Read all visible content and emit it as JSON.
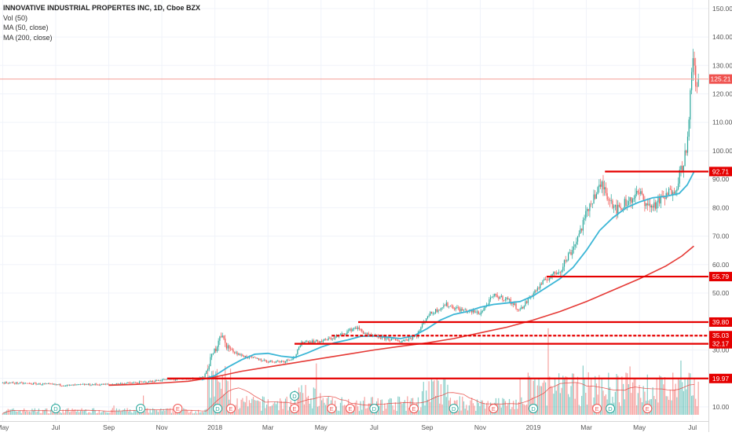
{
  "legend": {
    "title": "INNOVATIVE INDUSTRIAL PROPERTES INC, 1D, Cboe BZX",
    "vol": "Vol (50)",
    "ma50": "MA (50, close)",
    "ma200": "MA (200, close)"
  },
  "colors": {
    "up": "#26a69a",
    "down": "#ef5350",
    "ma50": "#3bb6d6",
    "ma200": "#e53935",
    "hline": "#e50000",
    "last_price_line": "#f4a09a",
    "axis_text": "#555555",
    "grid": "#f0f3fa"
  },
  "chart_data": {
    "type": "candlestick",
    "title": "INNOVATIVE INDUSTRIAL PROPERTES INC, 1D, Cboe BZX",
    "ylim": [
      5,
      153
    ],
    "y_ticks": [
      10,
      20,
      30,
      40,
      50,
      60,
      70,
      80,
      90,
      100,
      110,
      120,
      130,
      140,
      150
    ],
    "y_tick_labels": [
      "10.00",
      "20.00",
      "30.00",
      "40.00",
      "50.00",
      "60.00",
      "70.00",
      "80.00",
      "90.00",
      "100.00",
      "110.00",
      "120.00",
      "130.00",
      "140.00",
      "150.00"
    ],
    "x_ticks": [
      {
        "label": "May",
        "t": 0
      },
      {
        "label": "Jul",
        "t": 2
      },
      {
        "label": "Sep",
        "t": 4
      },
      {
        "label": "Nov",
        "t": 6
      },
      {
        "label": "2018",
        "t": 8
      },
      {
        "label": "Mar",
        "t": 10
      },
      {
        "label": "May",
        "t": 12
      },
      {
        "label": "Jul",
        "t": 14
      },
      {
        "label": "Sep",
        "t": 16
      },
      {
        "label": "Nov",
        "t": 18
      },
      {
        "label": "2019",
        "t": 20
      },
      {
        "label": "Mar",
        "t": 22
      },
      {
        "label": "May",
        "t": 24
      },
      {
        "label": "Jul",
        "t": 26
      }
    ],
    "price_path": [
      [
        0,
        18.5
      ],
      [
        1,
        18.2
      ],
      [
        2,
        17.8
      ],
      [
        2.5,
        17.5
      ],
      [
        3,
        17.8
      ],
      [
        4,
        17.9
      ],
      [
        4.7,
        18.3
      ],
      [
        5.5,
        18.8
      ],
      [
        6,
        19.5
      ],
      [
        7,
        19.8
      ],
      [
        7.6,
        20.5
      ],
      [
        7.85,
        27
      ],
      [
        8.05,
        31
      ],
      [
        8.2,
        36
      ],
      [
        8.4,
        32
      ],
      [
        8.6,
        30
      ],
      [
        9,
        28
      ],
      [
        9.5,
        27
      ],
      [
        10,
        26
      ],
      [
        10.6,
        26
      ],
      [
        11,
        27.5
      ],
      [
        11.3,
        33
      ],
      [
        12,
        33
      ],
      [
        12.7,
        35
      ],
      [
        13.3,
        38
      ],
      [
        13.8,
        35
      ],
      [
        14.5,
        34
      ],
      [
        15,
        33
      ],
      [
        15.6,
        35
      ],
      [
        16,
        42
      ],
      [
        16.7,
        46
      ],
      [
        17.3,
        44
      ],
      [
        18,
        43
      ],
      [
        18.5,
        49
      ],
      [
        19,
        48
      ],
      [
        19.5,
        44
      ],
      [
        20,
        50
      ],
      [
        20.5,
        55
      ],
      [
        21,
        58
      ],
      [
        21.5,
        66
      ],
      [
        21.9,
        75
      ],
      [
        22.2,
        83
      ],
      [
        22.6,
        88
      ],
      [
        22.9,
        83
      ],
      [
        23.2,
        79
      ],
      [
        23.5,
        82
      ],
      [
        24,
        85
      ],
      [
        24.4,
        80
      ],
      [
        25,
        84
      ],
      [
        25.4,
        88
      ],
      [
        25.7,
        98
      ],
      [
        25.85,
        106
      ],
      [
        25.95,
        125
      ],
      [
        26.05,
        135
      ],
      [
        26.15,
        118
      ],
      [
        26.22,
        125.21
      ]
    ],
    "ma50_path": [
      [
        7.5,
        19.5
      ],
      [
        8,
        21
      ],
      [
        8.5,
        24
      ],
      [
        9,
        26.5
      ],
      [
        9.5,
        28.5
      ],
      [
        10,
        28.8
      ],
      [
        10.5,
        27.8
      ],
      [
        11,
        27.3
      ],
      [
        11.5,
        29
      ],
      [
        12,
        31
      ],
      [
        12.5,
        32.5
      ],
      [
        13,
        33.5
      ],
      [
        13.5,
        34.8
      ],
      [
        14,
        34.9
      ],
      [
        14.5,
        34.5
      ],
      [
        15,
        34
      ],
      [
        15.5,
        35
      ],
      [
        16,
        37.5
      ],
      [
        16.5,
        40.5
      ],
      [
        17,
        42.5
      ],
      [
        17.5,
        43.5
      ],
      [
        18,
        45
      ],
      [
        18.5,
        46
      ],
      [
        19,
        46.5
      ],
      [
        19.5,
        47
      ],
      [
        20,
        49
      ],
      [
        20.5,
        52
      ],
      [
        21,
        55
      ],
      [
        21.5,
        59
      ],
      [
        22,
        65
      ],
      [
        22.5,
        72
      ],
      [
        23,
        76.5
      ],
      [
        23.5,
        80
      ],
      [
        24,
        82
      ],
      [
        24.5,
        83.5
      ],
      [
        25,
        84
      ],
      [
        25.5,
        85
      ],
      [
        25.8,
        88
      ],
      [
        26.05,
        92.5
      ]
    ],
    "ma200_path": [
      [
        4,
        17.6
      ],
      [
        5,
        17.9
      ],
      [
        6,
        18.4
      ],
      [
        7,
        19
      ],
      [
        8,
        20.5
      ],
      [
        9,
        22.5
      ],
      [
        10,
        24
      ],
      [
        11,
        25.5
      ],
      [
        12,
        27
      ],
      [
        13,
        28.5
      ],
      [
        14,
        30
      ],
      [
        15,
        31.3
      ],
      [
        16,
        32.5
      ],
      [
        17,
        34
      ],
      [
        18,
        36
      ],
      [
        19,
        38
      ],
      [
        20,
        40.5
      ],
      [
        21,
        43.5
      ],
      [
        22,
        47
      ],
      [
        23,
        51
      ],
      [
        24,
        55
      ],
      [
        25,
        59.5
      ],
      [
        25.6,
        63
      ],
      [
        26.05,
        66.5
      ]
    ],
    "levels": [
      {
        "value": 92.71,
        "label": "92.71",
        "t_start": 22.7,
        "style": "solid"
      },
      {
        "value": 55.79,
        "label": "55.79",
        "t_start": 20.5,
        "style": "solid"
      },
      {
        "value": 39.8,
        "label": "39.80",
        "t_start": 13.4,
        "style": "solid"
      },
      {
        "value": 35.03,
        "label": "35.03",
        "t_start": 12.4,
        "style": "dashed"
      },
      {
        "value": 32.17,
        "label": "32.17",
        "t_start": 11.0,
        "style": "solid"
      },
      {
        "value": 19.97,
        "label": "19.97",
        "t_start": 6.2,
        "style": "solid"
      }
    ],
    "last_price": {
      "value": 125.21,
      "label": "125.21"
    },
    "events": [
      {
        "t": 2.0,
        "letter": "D",
        "kind": "dividend"
      },
      {
        "t": 5.2,
        "letter": "D",
        "kind": "dividend"
      },
      {
        "t": 6.6,
        "letter": "E",
        "kind": "earnings"
      },
      {
        "t": 8.1,
        "letter": "D",
        "kind": "dividend"
      },
      {
        "t": 8.6,
        "letter": "E",
        "kind": "earnings"
      },
      {
        "t": 11.0,
        "letter": "D",
        "kind": "dividend",
        "upper": true
      },
      {
        "t": 11.0,
        "letter": "E",
        "kind": "earnings"
      },
      {
        "t": 12.4,
        "letter": "E",
        "kind": "earnings"
      },
      {
        "t": 13.1,
        "letter": "E",
        "kind": "earnings"
      },
      {
        "t": 14.0,
        "letter": "D",
        "kind": "dividend"
      },
      {
        "t": 15.5,
        "letter": "E",
        "kind": "earnings"
      },
      {
        "t": 17.0,
        "letter": "D",
        "kind": "dividend"
      },
      {
        "t": 18.5,
        "letter": "E",
        "kind": "earnings"
      },
      {
        "t": 20.0,
        "letter": "D",
        "kind": "dividend"
      },
      {
        "t": 22.4,
        "letter": "E",
        "kind": "earnings"
      },
      {
        "t": 22.9,
        "letter": "D",
        "kind": "dividend"
      },
      {
        "t": 24.3,
        "letter": "E",
        "kind": "earnings"
      }
    ]
  }
}
